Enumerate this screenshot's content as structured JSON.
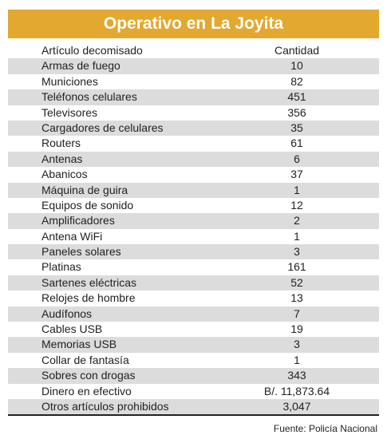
{
  "header": {
    "title": "Operativo en La Joyita"
  },
  "table": {
    "columns": [
      "Artículo decomisado",
      "Cantidad"
    ],
    "rows": [
      [
        "Armas de fuego",
        "10"
      ],
      [
        "Municiones",
        "82"
      ],
      [
        "Teléfonos celulares",
        "451"
      ],
      [
        "Televisores",
        "356"
      ],
      [
        "Cargadores de celulares",
        "35"
      ],
      [
        "Routers",
        "61"
      ],
      [
        "Antenas",
        "6"
      ],
      [
        "Abanicos",
        "37"
      ],
      [
        "Máquina de guira",
        "1"
      ],
      [
        "Equipos de sonido",
        "12"
      ],
      [
        "Amplificadores",
        "2"
      ],
      [
        "Antena WiFi",
        "1"
      ],
      [
        "Paneles solares",
        "3"
      ],
      [
        "Platinas",
        "161"
      ],
      [
        "Sartenes eléctricas",
        "52"
      ],
      [
        "Relojes de hombre",
        "13"
      ],
      [
        "Audífonos",
        "7"
      ],
      [
        "Cables USB",
        "19"
      ],
      [
        "Memorias USB",
        "3"
      ],
      [
        "Collar de fantasía",
        "1"
      ],
      [
        "Sobres con drogas",
        "343"
      ],
      [
        "Dinero en efectivo",
        "B/. 11,873.64"
      ],
      [
        "Otros artículos prohibidos",
        "3,047"
      ]
    ]
  },
  "footer": {
    "source": "Fuente: Policía Nacional"
  }
}
